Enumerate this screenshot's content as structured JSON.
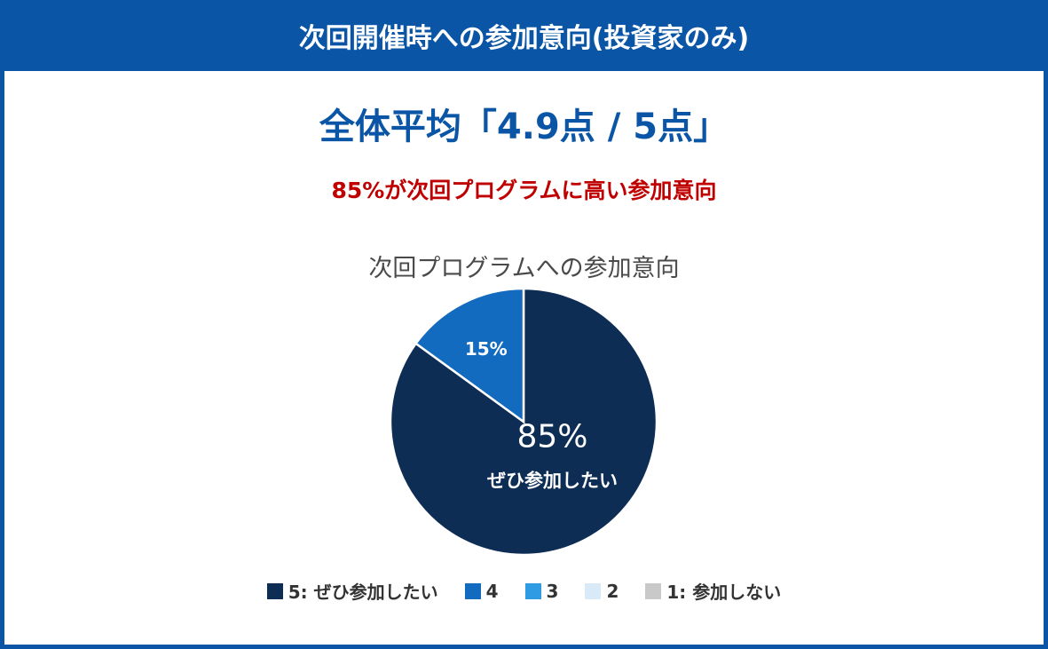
{
  "header": {
    "title": "次回開催時への参加意向(投資家のみ)"
  },
  "summary": {
    "main": "全体平均「4.9点 / 5点」",
    "highlight": "85%が次回プログラムに高い参加意向"
  },
  "colors": {
    "brand": "#0a55a6",
    "highlight": "#c00000"
  },
  "chart_data": {
    "type": "pie",
    "title": "次回プログラムへの参加意向",
    "slices": [
      {
        "label": "5: ぜひ参加したい",
        "value": 85,
        "color": "#0d2d55",
        "data_label": "85%",
        "sub_label": "ぜひ参加したい"
      },
      {
        "label": "4",
        "value": 15,
        "color": "#136bbf",
        "data_label": "15%",
        "sub_label": ""
      },
      {
        "label": "3",
        "value": 0,
        "color": "#2f9be3",
        "data_label": "",
        "sub_label": ""
      },
      {
        "label": "2",
        "value": 0,
        "color": "#d8eaf7",
        "data_label": "",
        "sub_label": ""
      },
      {
        "label": "1: 参加しない",
        "value": 0,
        "color": "#c9c9c9",
        "data_label": "",
        "sub_label": ""
      }
    ],
    "legend_position": "bottom"
  }
}
